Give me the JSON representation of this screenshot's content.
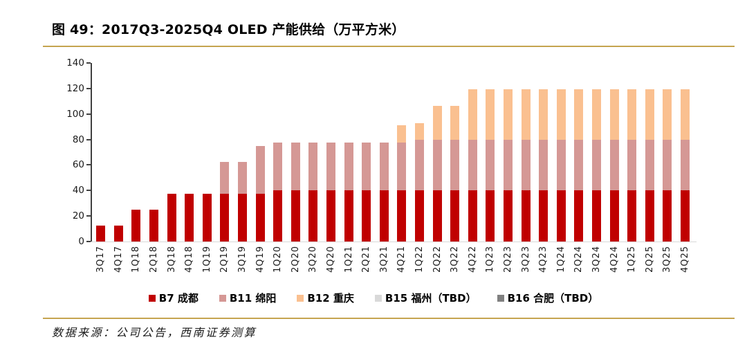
{
  "figure": {
    "title": "图 49：2017Q3-2025Q4 OLED 产能供给（万平方米）",
    "source": "数据来源：公司公告，西南证券测算"
  },
  "colors": {
    "rule_gold": "#C5A44F",
    "axis": "#404040",
    "baseline": "#D9D9D9"
  },
  "chart_data": {
    "type": "bar",
    "stacked": true,
    "title": "2017Q3-2025Q4 OLED 产能供给（万平方米）",
    "xlabel": "",
    "ylabel": "万平方米",
    "ylim": [
      0,
      140
    ],
    "yticks": [
      0,
      20,
      40,
      60,
      80,
      100,
      120,
      140
    ],
    "grid": false,
    "legend_position": "bottom",
    "categories": [
      "3Q17",
      "4Q17",
      "1Q18",
      "2Q18",
      "3Q18",
      "4Q18",
      "1Q19",
      "2Q19",
      "3Q19",
      "4Q19",
      "1Q20",
      "2Q20",
      "3Q20",
      "4Q20",
      "1Q21",
      "2Q21",
      "3Q21",
      "4Q21",
      "1Q22",
      "2Q22",
      "3Q22",
      "4Q22",
      "1Q23",
      "2Q23",
      "3Q23",
      "4Q23",
      "1Q24",
      "2Q24",
      "3Q24",
      "4Q24",
      "1Q25",
      "2Q25",
      "3Q25",
      "4Q25"
    ],
    "series": [
      {
        "key": "b7",
        "name": "B7 成都",
        "color": "#C00000",
        "values": [
          12.5,
          12.5,
          25,
          25,
          37.5,
          37.5,
          37.5,
          37.5,
          37.5,
          37.5,
          40,
          40,
          40,
          40,
          40,
          40,
          40,
          40,
          40,
          40,
          40,
          40,
          40,
          40,
          40,
          40,
          40,
          40,
          40,
          40,
          40,
          40,
          40,
          40
        ]
      },
      {
        "key": "b11",
        "name": "B11 绵阳",
        "color": "#D59895",
        "values": [
          0,
          0,
          0,
          0,
          0,
          0,
          0,
          25,
          25,
          37.5,
          37.5,
          37.5,
          37.5,
          37.5,
          37.5,
          37.5,
          37.5,
          37.5,
          40,
          40,
          40,
          40,
          40,
          40,
          40,
          40,
          40,
          40,
          40,
          40,
          40,
          40,
          40,
          40
        ]
      },
      {
        "key": "b12",
        "name": "B12 重庆",
        "color": "#FAC090",
        "values": [
          0,
          0,
          0,
          0,
          0,
          0,
          0,
          0,
          0,
          0,
          0,
          0,
          0,
          0,
          0,
          0,
          0,
          13.5,
          13,
          26.5,
          26.5,
          39.5,
          39.5,
          39.5,
          39.5,
          39.5,
          39.5,
          39.5,
          39.5,
          39.5,
          39.5,
          39.5,
          39.5,
          39.5
        ]
      },
      {
        "key": "b15",
        "name": "B15 福州（TBD）",
        "color": "#D9D9D9",
        "values": [
          0,
          0,
          0,
          0,
          0,
          0,
          0,
          0,
          0,
          0,
          0,
          0,
          0,
          0,
          0,
          0,
          0,
          0,
          0,
          0,
          0,
          0,
          0,
          0,
          0,
          0,
          0,
          0,
          0,
          0,
          0,
          0,
          0,
          0
        ]
      },
      {
        "key": "b16",
        "name": "B16 合肥（TBD）",
        "color": "#808080",
        "values": [
          0,
          0,
          0,
          0,
          0,
          0,
          0,
          0,
          0,
          0,
          0,
          0,
          0,
          0,
          0,
          0,
          0,
          0,
          0,
          0,
          0,
          0,
          0,
          0,
          0,
          0,
          0,
          0,
          0,
          0,
          0,
          0,
          0,
          0
        ]
      }
    ]
  }
}
